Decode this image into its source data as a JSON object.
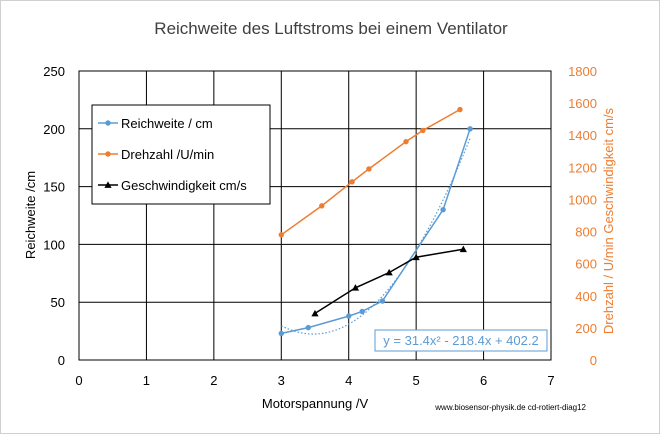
{
  "chart_data": {
    "type": "line",
    "title": "Reichweite des Luftstroms bei einem Ventilator",
    "xlabel": "Motorspannung /V",
    "ylabel": "Reichweite /cm",
    "y2label": "Drehzahl / U/min  Geschwindigkeit cm/s",
    "xlim": [
      0,
      7
    ],
    "ylim": [
      0,
      250
    ],
    "y2lim": [
      0,
      1800
    ],
    "x_ticks": [
      "0",
      "1",
      "2",
      "3",
      "4",
      "5",
      "6",
      "7"
    ],
    "y_ticks": [
      "0",
      "50",
      "100",
      "150",
      "200",
      "250"
    ],
    "y2_ticks": [
      "0",
      "200",
      "400",
      "600",
      "800",
      "1000",
      "1200",
      "1400",
      "1600",
      "1800"
    ],
    "grid": true,
    "legend_position": "top-left",
    "series": [
      {
        "name": "Reichweite / cm",
        "axis": "left",
        "color": "#5b9bd5",
        "marker": "circle",
        "x": [
          3.0,
          3.4,
          4.0,
          4.2,
          4.5,
          5.4,
          5.8
        ],
        "y": [
          23,
          28,
          38,
          42,
          51,
          130,
          200
        ]
      },
      {
        "name": "Drehzahl /U/min",
        "axis": "right",
        "color": "#ed7d31",
        "marker": "circle",
        "x": [
          3.0,
          3.6,
          4.05,
          4.3,
          4.85,
          5.1,
          5.65
        ],
        "y": [
          780,
          960,
          1110,
          1190,
          1360,
          1430,
          1560
        ]
      },
      {
        "name": "Geschwindigkeit cm/s",
        "axis": "right",
        "color": "#000000",
        "marker": "triangle",
        "x": [
          3.5,
          4.1,
          4.6,
          5.0,
          5.7
        ],
        "y": [
          290,
          450,
          545,
          640,
          690
        ]
      }
    ],
    "trendline": {
      "series": "Reichweite / cm",
      "color": "#5b9bd5",
      "coefficients": [
        31.4,
        -218.4,
        402.2
      ],
      "x_range": [
        3.0,
        5.8
      ],
      "equation": "y = 31.4x² - 218.4x + 402.2"
    },
    "source_note": "www.biosensor-physik.de  cd-rotiert-diag12"
  }
}
